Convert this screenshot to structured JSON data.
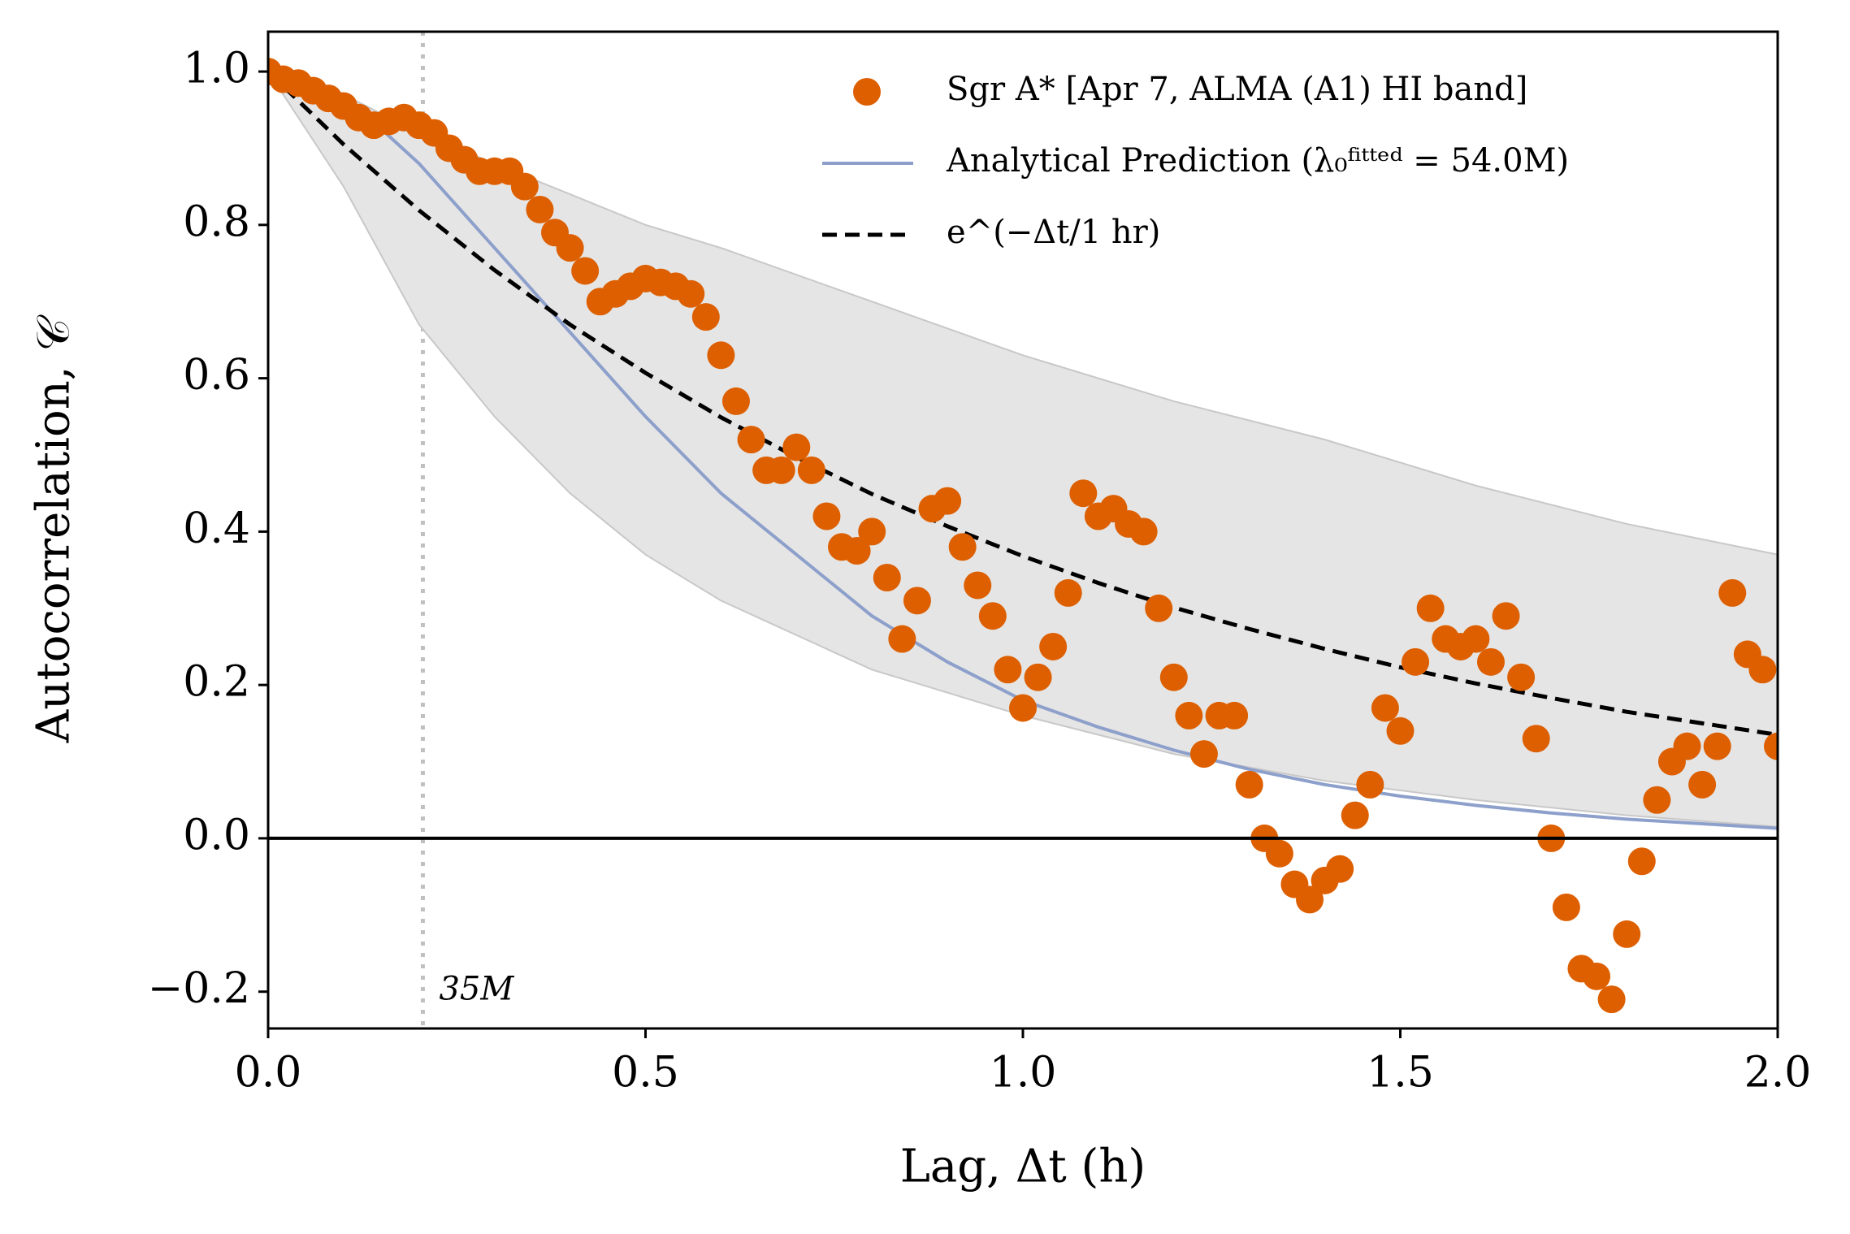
{
  "chart_data": {
    "type": "scatter",
    "xlabel": "Lag, Δt (h)",
    "ylabel": "Autocorrelation, 𝒞",
    "xlim": [
      0,
      2
    ],
    "ylim": [
      -0.248,
      1.052
    ],
    "xticks": [
      {
        "value": 0,
        "label": "0.0"
      },
      0.5,
      {
        "value": 1,
        "label": "1.0"
      },
      1.5,
      {
        "value": 2,
        "label": "2.0"
      }
    ],
    "yticks": [
      {
        "value": -0.2,
        "label": "−0.2"
      },
      {
        "value": 0,
        "label": "0.0"
      },
      0.2,
      0.4,
      0.6,
      0.8,
      {
        "value": 1,
        "label": "1.0"
      }
    ],
    "hline": 0,
    "vline": 0.205,
    "vline_label": "35M",
    "vline_label_y": -0.2,
    "legend": "upper right",
    "series": [
      {
        "type": "band",
        "color": "#e5e5e5",
        "x": [
          0,
          0.1,
          0.2,
          0.3,
          0.4,
          0.5,
          0.6,
          0.8,
          1.0,
          1.2,
          1.4,
          1.6,
          1.8,
          2.0
        ],
        "upper": [
          1.0,
          0.97,
          0.92,
          0.88,
          0.84,
          0.8,
          0.77,
          0.7,
          0.63,
          0.57,
          0.52,
          0.46,
          0.41,
          0.37
        ],
        "lower": [
          1.0,
          0.85,
          0.67,
          0.55,
          0.45,
          0.37,
          0.31,
          0.22,
          0.16,
          0.11,
          0.075,
          0.05,
          0.03,
          0.015
        ]
      },
      {
        "type": "scatter",
        "name": "Sgr A* [Apr 7, ALMA (A1) HI band]",
        "color": "#dd5f00",
        "x": [
          0,
          0.02,
          0.04,
          0.06,
          0.08,
          0.1,
          0.12,
          0.14,
          0.16,
          0.18,
          0.2,
          0.22,
          0.24,
          0.26,
          0.28,
          0.3,
          0.32,
          0.34,
          0.36,
          0.38,
          0.4,
          0.42,
          0.44,
          0.46,
          0.48,
          0.5,
          0.52,
          0.54,
          0.56,
          0.58,
          0.6,
          0.62,
          0.64,
          0.66,
          0.68,
          0.7,
          0.72,
          0.74,
          0.76,
          0.78,
          0.8,
          0.82,
          0.84,
          0.86,
          0.88,
          0.9,
          0.92,
          0.94,
          0.96,
          0.98,
          1.0,
          1.02,
          1.04,
          1.06,
          1.08,
          1.1,
          1.12,
          1.14,
          1.16,
          1.18,
          1.2,
          1.22,
          1.24,
          1.26,
          1.28,
          1.3,
          1.32,
          1.34,
          1.36,
          1.38,
          1.4,
          1.42,
          1.44,
          1.46,
          1.48,
          1.5,
          1.52,
          1.54,
          1.56,
          1.58,
          1.6,
          1.62,
          1.64,
          1.66,
          1.68,
          1.7,
          1.72,
          1.74,
          1.76,
          1.78,
          1.8,
          1.82,
          1.84,
          1.86,
          1.88,
          1.9,
          1.92,
          1.94,
          1.96,
          1.98,
          2.0
        ],
        "values": [
          1.0,
          0.99,
          0.985,
          0.975,
          0.965,
          0.955,
          0.94,
          0.93,
          0.935,
          0.94,
          0.93,
          0.92,
          0.9,
          0.885,
          0.87,
          0.87,
          0.87,
          0.85,
          0.82,
          0.79,
          0.77,
          0.74,
          0.7,
          0.71,
          0.72,
          0.73,
          0.725,
          0.72,
          0.71,
          0.68,
          0.63,
          0.57,
          0.52,
          0.48,
          0.48,
          0.51,
          0.48,
          0.42,
          0.38,
          0.375,
          0.4,
          0.34,
          0.26,
          0.31,
          0.43,
          0.44,
          0.38,
          0.33,
          0.29,
          0.22,
          0.17,
          0.21,
          0.25,
          0.32,
          0.45,
          0.42,
          0.43,
          0.41,
          0.4,
          0.3,
          0.21,
          0.16,
          0.11,
          0.16,
          0.16,
          0.07,
          0.0,
          -0.02,
          -0.06,
          -0.08,
          -0.055,
          -0.04,
          0.03,
          0.07,
          0.17,
          0.14,
          0.23,
          0.3,
          0.26,
          0.25,
          0.26,
          0.23,
          0.29,
          0.21,
          0.13,
          0.0,
          -0.09,
          -0.17,
          -0.18,
          -0.21,
          -0.125,
          -0.03,
          0.05,
          0.1,
          0.12,
          0.07,
          0.12,
          0.32,
          0.24,
          0.22,
          0.12
        ]
      },
      {
        "type": "line",
        "name": "Analytical Prediction (λ₀ᶠⁱᵗᵗᵉᵈ = 54.0M)",
        "color": "#8da0cb",
        "dash": false,
        "x": [
          0,
          0.1,
          0.2,
          0.3,
          0.4,
          0.5,
          0.6,
          0.7,
          0.8,
          0.9,
          1.0,
          1.1,
          1.2,
          1.3,
          1.4,
          1.5,
          1.6,
          1.7,
          1.8,
          1.9,
          2.0
        ],
        "values": [
          1.0,
          0.97,
          0.88,
          0.77,
          0.66,
          0.55,
          0.45,
          0.37,
          0.29,
          0.23,
          0.18,
          0.145,
          0.115,
          0.09,
          0.07,
          0.055,
          0.043,
          0.033,
          0.025,
          0.019,
          0.013
        ]
      },
      {
        "type": "line",
        "name": "e^(−Δt/1 hr)",
        "color": "#000000",
        "dash": true,
        "x": [
          0,
          0.1,
          0.2,
          0.3,
          0.4,
          0.5,
          0.6,
          0.7,
          0.8,
          0.9,
          1.0,
          1.1,
          1.2,
          1.3,
          1.4,
          1.5,
          1.6,
          1.7,
          1.8,
          1.9,
          2.0
        ],
        "values": [
          1.0,
          0.905,
          0.819,
          0.741,
          0.67,
          0.607,
          0.549,
          0.497,
          0.449,
          0.407,
          0.368,
          0.333,
          0.301,
          0.273,
          0.247,
          0.223,
          0.202,
          0.183,
          0.165,
          0.15,
          0.135
        ]
      }
    ]
  }
}
